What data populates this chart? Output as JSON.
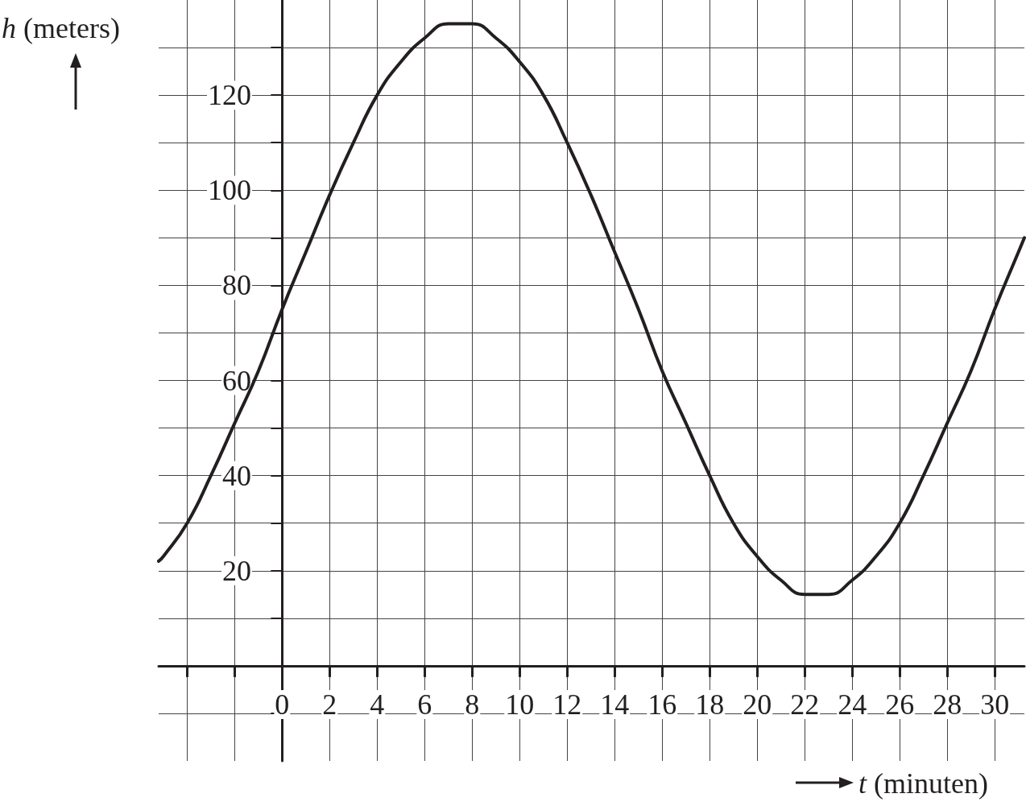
{
  "chart_data": {
    "type": "line",
    "xlabel": "t (minuten)",
    "ylabel": "h (meters)",
    "x": [
      -5.2,
      -5,
      -4,
      -3,
      -2,
      -1,
      0,
      1,
      2,
      3,
      4,
      5,
      6,
      7,
      7.5,
      8,
      9,
      10,
      11,
      12,
      13,
      14,
      15,
      16,
      17,
      18,
      19,
      20,
      21,
      22,
      22.5,
      23,
      24,
      25,
      26,
      27,
      28,
      29,
      30,
      31,
      31.25
    ],
    "series": [
      {
        "color": "#231f20",
        "values": [
          22,
          23,
          30,
          40,
          51,
          62,
          75,
          87,
          99,
          110,
          120,
          127,
          132,
          135,
          135,
          135,
          132,
          127,
          120,
          110,
          99,
          87,
          75,
          62,
          51,
          40,
          30,
          23,
          18,
          15,
          15,
          15,
          18,
          23,
          30,
          40,
          51,
          62,
          75,
          87,
          90
        ]
      }
    ],
    "xlim": [
      -5.2,
      31.25
    ],
    "xticks": [
      {
        "value": -4,
        "label": null
      },
      {
        "value": -2,
        "label": null
      },
      0,
      2,
      4,
      6,
      8,
      10,
      12,
      14,
      16,
      18,
      20,
      22,
      24,
      26,
      28,
      30
    ],
    "ylim": [
      -20,
      140
    ],
    "yticks": [
      {
        "value": -10,
        "label": null
      },
      {
        "value": 10,
        "label": null
      },
      20,
      {
        "value": 30,
        "label": null
      },
      40,
      {
        "value": 50,
        "label": null
      },
      60,
      {
        "value": 70,
        "label": null
      },
      80,
      {
        "value": 90,
        "label": null
      },
      100,
      {
        "value": 110,
        "label": null
      },
      120,
      {
        "value": 130,
        "label": null
      }
    ],
    "grid": true,
    "marker": "none",
    "line_style": "solid"
  }
}
